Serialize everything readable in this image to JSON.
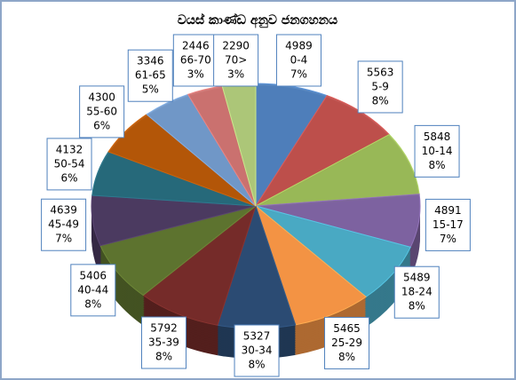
{
  "chart_data": {
    "type": "pie",
    "title": "වයස් කාණ්ඩ අනුව ජනගහනය",
    "categories": [
      "0-4",
      "5-9",
      "10-14",
      "15-17",
      "18-24",
      "25-29",
      "30-34",
      "35-39",
      "40-44",
      "45-49",
      "50-54",
      "55-60",
      "61-65",
      "66-70",
      "70>"
    ],
    "values": [
      4989,
      5563,
      5848,
      4891,
      5489,
      5465,
      5327,
      5792,
      5406,
      4639,
      4132,
      4300,
      3346,
      2446,
      2290
    ],
    "percent_labels": [
      "7%",
      "8%",
      "8%",
      "7%",
      "8%",
      "8%",
      "8%",
      "8%",
      "8%",
      "7%",
      "6%",
      "6%",
      "5%",
      "3%",
      "3%"
    ],
    "colors": [
      "#4f81bd",
      "#c0504d",
      "#9bbb59",
      "#8064a2",
      "#4bacc6",
      "#f79646",
      "#2c4d75",
      "#772c2a",
      "#5f7530",
      "#4d3b62",
      "#276a7c",
      "#b65708",
      "#729aca",
      "#cd7371",
      "#afc97a"
    ]
  }
}
